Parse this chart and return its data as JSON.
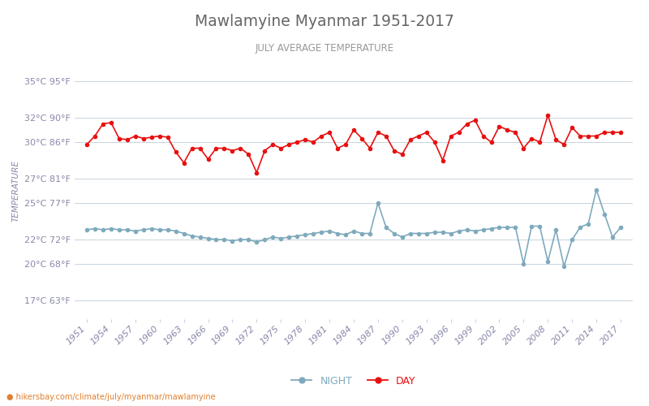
{
  "title": "Mawlamyine Myanmar 1951-2017",
  "subtitle": "JULY AVERAGE TEMPERATURE",
  "ylabel": "TEMPERATURE",
  "xlabel_url": "hikersbay.com/climate/july/myanmar/mawlamyine",
  "years": [
    1951,
    1952,
    1953,
    1954,
    1955,
    1956,
    1957,
    1958,
    1959,
    1960,
    1961,
    1962,
    1963,
    1964,
    1965,
    1966,
    1967,
    1968,
    1969,
    1970,
    1971,
    1972,
    1973,
    1974,
    1975,
    1976,
    1977,
    1978,
    1979,
    1980,
    1981,
    1982,
    1983,
    1984,
    1985,
    1986,
    1987,
    1988,
    1989,
    1990,
    1991,
    1992,
    1993,
    1994,
    1995,
    1996,
    1997,
    1998,
    1999,
    2000,
    2001,
    2002,
    2003,
    2004,
    2005,
    2006,
    2007,
    2008,
    2009,
    2010,
    2011,
    2012,
    2013,
    2014,
    2015,
    2016,
    2017
  ],
  "day_temps": [
    29.8,
    30.5,
    31.5,
    31.6,
    30.3,
    30.2,
    30.5,
    30.3,
    30.4,
    30.5,
    30.4,
    29.2,
    28.3,
    29.5,
    29.5,
    28.6,
    29.5,
    29.5,
    29.3,
    29.5,
    29.0,
    27.5,
    29.3,
    29.8,
    29.5,
    29.8,
    30.0,
    30.2,
    30.0,
    30.5,
    30.8,
    29.5,
    29.8,
    31.0,
    30.3,
    29.5,
    30.8,
    30.5,
    29.3,
    29.0,
    30.2,
    30.5,
    30.8,
    30.0,
    28.5,
    30.5,
    30.8,
    31.5,
    31.8,
    30.5,
    30.0,
    31.3,
    31.0,
    30.8,
    29.5,
    30.3,
    30.0,
    32.2,
    30.2,
    29.8,
    31.2,
    30.5,
    30.5,
    30.5,
    30.8,
    30.8,
    30.8
  ],
  "night_temps": [
    22.8,
    22.9,
    22.8,
    22.9,
    22.8,
    22.8,
    22.7,
    22.8,
    22.9,
    22.8,
    22.8,
    22.7,
    22.5,
    22.3,
    22.2,
    22.1,
    22.0,
    22.0,
    21.9,
    22.0,
    22.0,
    21.8,
    22.0,
    22.2,
    22.1,
    22.2,
    22.3,
    22.4,
    22.5,
    22.6,
    22.7,
    22.5,
    22.4,
    22.7,
    22.5,
    22.5,
    25.0,
    23.0,
    22.5,
    22.2,
    22.5,
    22.5,
    22.5,
    22.6,
    22.6,
    22.5,
    22.7,
    22.8,
    22.7,
    22.8,
    22.9,
    23.0,
    23.0,
    23.0,
    20.0,
    23.1,
    23.1,
    20.2,
    22.8,
    19.8,
    22.0,
    23.0,
    23.3,
    26.1,
    24.1,
    22.2,
    23.0
  ],
  "day_color": "#e81010",
  "night_color": "#7faabd",
  "bg_color": "#ffffff",
  "grid_color": "#c8d4dc",
  "title_color": "#666666",
  "subtitle_color": "#999999",
  "ylabel_color": "#8888aa",
  "tick_color": "#8888aa",
  "ytick_labels": [
    "17°C 63°F",
    "20°C 68°F",
    "22°C 72°F",
    "25°C 77°F",
    "27°C 81°F",
    "30°C 86°F",
    "32°C 90°F",
    "35°C 95°F"
  ],
  "ytick_values": [
    17,
    20,
    22,
    25,
    27,
    30,
    32,
    35
  ],
  "ylim": [
    15.5,
    36.5
  ],
  "xtick_years": [
    1951,
    1954,
    1957,
    1960,
    1963,
    1966,
    1969,
    1972,
    1975,
    1978,
    1981,
    1984,
    1987,
    1990,
    1993,
    1996,
    1999,
    2002,
    2005,
    2008,
    2011,
    2014,
    2017
  ],
  "legend_night": "NIGHT",
  "legend_day": "DAY",
  "marker_size": 3.0,
  "line_width": 1.2,
  "url_dot_color": "#e08030"
}
